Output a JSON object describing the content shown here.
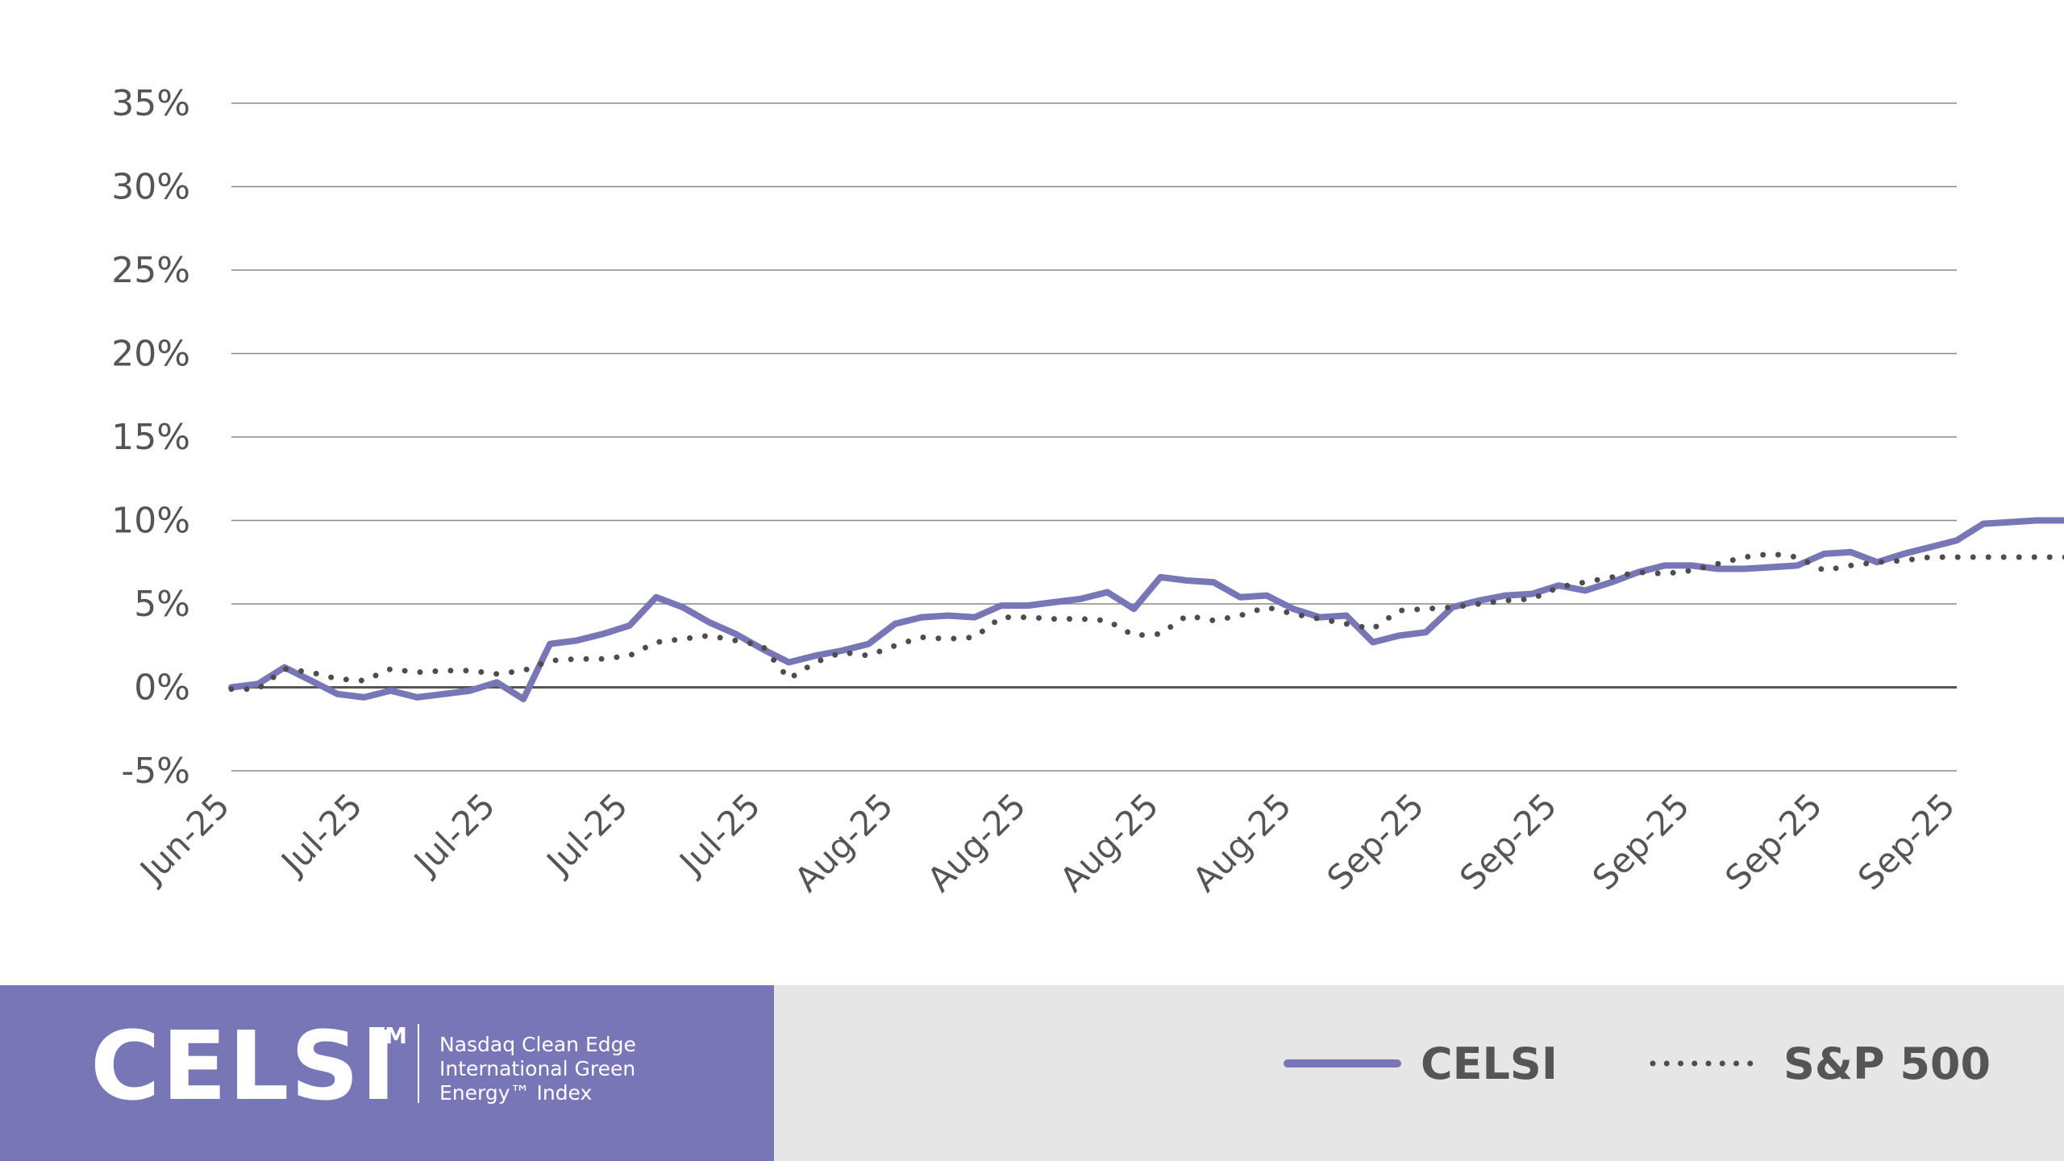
{
  "chart_data": {
    "type": "line",
    "title": "",
    "xlabel": "",
    "ylabel": "",
    "ylim": [
      -5,
      35
    ],
    "y_ticks": [
      "-5%",
      "0%",
      "5%",
      "10%",
      "15%",
      "20%",
      "25%",
      "30%",
      "35%"
    ],
    "x_tick_labels": [
      "Jun-25",
      "Jul-25",
      "Jul-25",
      "Jul-25",
      "Jul-25",
      "Aug-25",
      "Aug-25",
      "Aug-25",
      "Aug-25",
      "Sep-25",
      "Sep-25",
      "Sep-25",
      "Sep-25",
      "Sep-25"
    ],
    "grid": true,
    "legend_position": "bottom-right",
    "series": [
      {
        "name": "CELSI",
        "style": "solid",
        "color": "#7976b8",
        "x": [
          0,
          0.2,
          0.4,
          0.6,
          0.8,
          1.0,
          1.2,
          1.4,
          1.6,
          1.8,
          2.0,
          2.2,
          2.4,
          2.6,
          2.8,
          3.0,
          3.2,
          3.4,
          3.6,
          3.8,
          4.0,
          4.2,
          4.4,
          4.6,
          4.8,
          5.0,
          5.2,
          5.4,
          5.6,
          5.8,
          6.0,
          6.2,
          6.4,
          6.6,
          6.8,
          7.0,
          7.2,
          7.4,
          7.6,
          7.8,
          8.0,
          8.2,
          8.4,
          8.6,
          8.8,
          9.0,
          9.2,
          9.4,
          9.6,
          9.8,
          10.0,
          10.2,
          10.4,
          10.6,
          10.8,
          11.0,
          11.2,
          11.4,
          11.6,
          11.8,
          12.0,
          12.2,
          12.4,
          12.6,
          12.8,
          13.0,
          13.2,
          13.4,
          13.6,
          13.8,
          14.0
        ],
        "values": [
          0.0,
          0.2,
          1.2,
          0.4,
          -0.4,
          -0.6,
          -0.2,
          -0.6,
          -0.4,
          -0.2,
          0.3,
          -0.7,
          2.6,
          2.8,
          3.2,
          3.7,
          5.4,
          4.8,
          3.9,
          3.2,
          2.3,
          1.5,
          1.9,
          2.2,
          2.6,
          3.8,
          4.2,
          4.3,
          4.2,
          4.9,
          4.9,
          5.1,
          5.3,
          5.7,
          4.7,
          6.6,
          6.4,
          6.3,
          5.4,
          5.5,
          4.7,
          4.2,
          4.3,
          2.7,
          3.1,
          3.3,
          4.8,
          5.2,
          5.5,
          5.6,
          6.1,
          5.8,
          6.3,
          6.9,
          7.3,
          7.3,
          7.1,
          7.1,
          7.2,
          7.3,
          8.0,
          8.1,
          7.5,
          8.0,
          8.4,
          8.8,
          9.8,
          9.9,
          10.0,
          10.0,
          10.0
        ]
      },
      {
        "name": "S&P 500",
        "style": "dotted",
        "color": "#4d4d4d",
        "x": [
          0,
          0.2,
          0.4,
          0.6,
          0.8,
          1.0,
          1.2,
          1.4,
          1.6,
          1.8,
          2.0,
          2.2,
          2.4,
          2.6,
          2.8,
          3.0,
          3.2,
          3.4,
          3.6,
          3.8,
          4.0,
          4.2,
          4.4,
          4.6,
          4.8,
          5.0,
          5.2,
          5.4,
          5.6,
          5.8,
          6.0,
          6.2,
          6.4,
          6.6,
          6.8,
          7.0,
          7.2,
          7.4,
          7.6,
          7.8,
          8.0,
          8.2,
          8.4,
          8.6,
          8.8,
          9.0,
          9.2,
          9.4,
          9.6,
          9.8,
          10.0,
          10.2,
          10.4,
          10.6,
          10.8,
          11.0,
          11.2,
          11.4,
          11.6,
          11.8,
          12.0,
          12.2,
          12.4,
          12.6,
          12.8,
          13.0,
          13.2,
          13.4,
          13.6,
          13.8,
          14.0
        ],
        "values": [
          -0.1,
          -0.1,
          1.1,
          0.9,
          0.5,
          0.4,
          1.1,
          0.9,
          1.0,
          1.0,
          0.8,
          1.0,
          1.6,
          1.7,
          1.7,
          1.9,
          2.7,
          2.9,
          3.1,
          2.8,
          2.5,
          0.5,
          1.5,
          2.1,
          1.9,
          2.5,
          3.0,
          2.9,
          3.0,
          4.2,
          4.2,
          4.1,
          4.1,
          4.0,
          3.1,
          3.2,
          4.3,
          4.0,
          4.3,
          4.8,
          4.4,
          4.1,
          3.8,
          3.5,
          4.6,
          4.7,
          4.8,
          5.0,
          5.2,
          5.3,
          6.0,
          6.3,
          6.6,
          6.9,
          6.8,
          7.0,
          7.4,
          7.8,
          8.0,
          7.8,
          7.0,
          7.3,
          7.5,
          7.6,
          7.8,
          7.8,
          7.8,
          7.8,
          7.8,
          7.8,
          7.8
        ]
      }
    ]
  },
  "footer": {
    "brand_name": "CELSI",
    "brand_tm": "TM",
    "brand_desc_lines": [
      "Nasdaq Clean Edge",
      "International Green",
      "Energy™ Index"
    ],
    "brand_bg": "#7976b8",
    "legend_bg": "#e6e6e6"
  },
  "legend": {
    "celsi_label": "CELSI",
    "sp500_label": "S&P 500"
  },
  "colors": {
    "grid": "#888888",
    "zero_line": "#555555",
    "tick_text": "#555555"
  }
}
